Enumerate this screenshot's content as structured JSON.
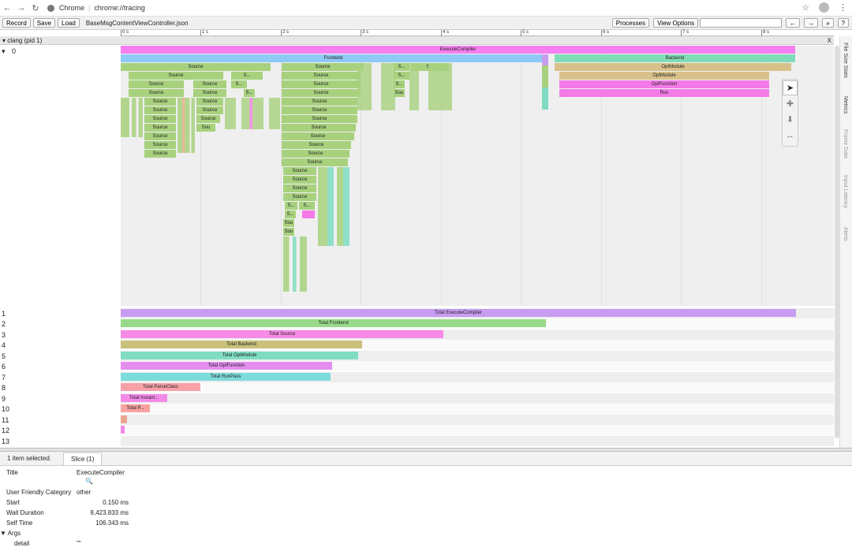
{
  "browser": {
    "site_name": "Chrome",
    "url": "chrome://tracing"
  },
  "toolbar": {
    "record_label": "Record",
    "save_label": "Save",
    "load_label": "Load",
    "file_name": "BaseMsgContentViewController.json",
    "processes_label": "Processes",
    "view_options_label": "View Options",
    "search_value": "",
    "prev_label": "←",
    "next_label": "→",
    "more_label": "»",
    "help_label": "?"
  },
  "ruler": {
    "ticks": [
      "0 s",
      "1 s",
      "2 s",
      "3 s",
      "4 s",
      "5 s",
      "6 s",
      "7 s",
      "8 s"
    ]
  },
  "process": {
    "title": "clang (pid 1)",
    "close_label": "X"
  },
  "threads": {
    "main_label": "0",
    "main_toggle": "▾",
    "row_labels": [
      "1",
      "2",
      "3",
      "4",
      "5",
      "6",
      "7",
      "8",
      "9",
      "10",
      "11",
      "12",
      "13"
    ]
  },
  "top_slices": {
    "execute": "ExecuteCompiler",
    "frontend": "Frontend",
    "backend": "Backend",
    "optmodule1": "OptModule",
    "optmodule2": "OptModule",
    "optfunction": "OptFunction",
    "run": "Run",
    "source": "Source",
    "s_short": "S...",
    "sou": "Sou",
    "sou_dots": "Sou..."
  },
  "totals": [
    {
      "label": "Total ExecuteCompiler",
      "color": "#c89cf0"
    },
    {
      "label": "Total Frontend",
      "color": "#99d98a"
    },
    {
      "label": "Total Source",
      "color": "#f78ae6"
    },
    {
      "label": "Total Backend",
      "color": "#c9c07a"
    },
    {
      "label": "Total OptModule",
      "color": "#7fdcc2"
    },
    {
      "label": "Total OptFunction",
      "color": "#e48ef0"
    },
    {
      "label": "Total RunPass",
      "color": "#7edbdb"
    },
    {
      "label": "Total ParseClass",
      "color": "#f7a0a8"
    },
    {
      "label": "Total Instant...",
      "color": "#f48ae8"
    },
    {
      "label": "Total P...",
      "color": "#f9a2a2"
    },
    {
      "label": "",
      "color": "#e8a890"
    },
    {
      "label": "",
      "color": "#f48ae8"
    },
    {
      "label": "",
      "color": "#ffffff"
    }
  ],
  "totals_fraction": [
    0.947,
    0.596,
    0.452,
    0.338,
    0.333,
    0.296,
    0.294,
    0.112,
    0.065,
    0.041,
    0.009,
    0.006,
    0.0
  ],
  "side_tabs": [
    "File Size Stats",
    "Metrics",
    "Frame Data",
    "Input Latency",
    "Alerts"
  ],
  "panel": {
    "selection_text": "1 item selected.",
    "tab_label": "Slice (1)"
  },
  "details": {
    "title_label": "Title",
    "title_value": "ExecuteCompiler",
    "category_label": "User Friendly Category",
    "category_value": "other",
    "start_label": "Start",
    "start_value": "0.150 ms",
    "wall_label": "Wall Duration",
    "wall_value": "8,423.833 ms",
    "self_label": "Self Time",
    "self_value": "106.343 ms",
    "args_label": "▼ Args",
    "detail_label": "detail",
    "detail_value": "\"\""
  },
  "colors": {
    "execute": "#f57ef0",
    "frontend": "#8fc9f5",
    "backend": "#82dbb8",
    "optmodule": "#d8c08a",
    "optfunction": "#f47ae8",
    "source": "#a8d17e"
  }
}
